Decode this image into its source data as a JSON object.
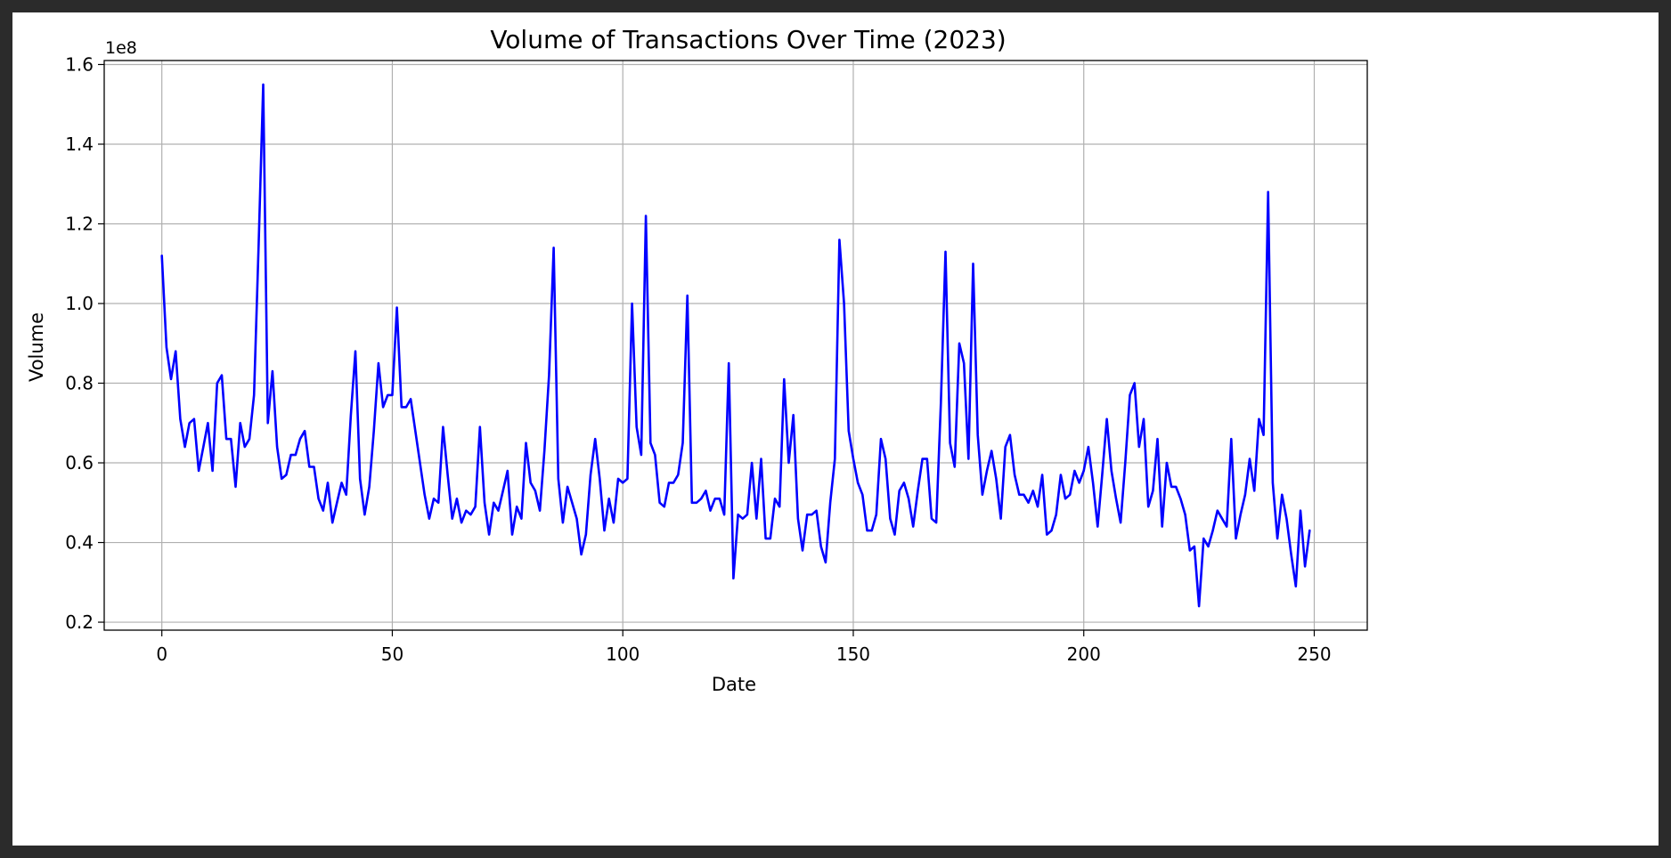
{
  "chart_data": {
    "type": "line",
    "title": "Volume of Transactions Over Time (2023)",
    "xlabel": "Date",
    "ylabel": "Volume",
    "offset_text": "1e8",
    "xlim": [
      -12.5,
      261.5
    ],
    "ylim": [
      0.18,
      1.61
    ],
    "y_scale_factor": 100000000,
    "xticks": [
      0,
      50,
      100,
      150,
      200,
      250
    ],
    "xtick_labels": [
      "0",
      "50",
      "100",
      "150",
      "200",
      "250"
    ],
    "yticks": [
      0.2,
      0.4,
      0.6,
      0.8,
      1.0,
      1.2,
      1.4,
      1.6
    ],
    "ytick_labels": [
      "0.2",
      "0.4",
      "0.6",
      "0.8",
      "1.0",
      "1.2",
      "1.4",
      "1.6"
    ],
    "grid": true,
    "legend": "none",
    "series": [
      {
        "color": "#0000ff",
        "x": [
          0,
          1,
          2,
          3,
          4,
          5,
          6,
          7,
          8,
          9,
          10,
          11,
          12,
          13,
          14,
          15,
          16,
          17,
          18,
          19,
          20,
          21,
          22,
          23,
          24,
          25,
          26,
          27,
          28,
          29,
          30,
          31,
          32,
          33,
          34,
          35,
          36,
          37,
          38,
          39,
          40,
          41,
          42,
          43,
          44,
          45,
          46,
          47,
          48,
          49,
          50,
          51,
          52,
          53,
          54,
          55,
          56,
          57,
          58,
          59,
          60,
          61,
          62,
          63,
          64,
          65,
          66,
          67,
          68,
          69,
          70,
          71,
          72,
          73,
          74,
          75,
          76,
          77,
          78,
          79,
          80,
          81,
          82,
          83,
          84,
          85,
          86,
          87,
          88,
          89,
          90,
          91,
          92,
          93,
          94,
          95,
          96,
          97,
          98,
          99,
          100,
          101,
          102,
          103,
          104,
          105,
          106,
          107,
          108,
          109,
          110,
          111,
          112,
          113,
          114,
          115,
          116,
          117,
          118,
          119,
          120,
          121,
          122,
          123,
          124,
          125,
          126,
          127,
          128,
          129,
          130,
          131,
          132,
          133,
          134,
          135,
          136,
          137,
          138,
          139,
          140,
          141,
          142,
          143,
          144,
          145,
          146,
          147,
          148,
          149,
          150,
          151,
          152,
          153,
          154,
          155,
          156,
          157,
          158,
          159,
          160,
          161,
          162,
          163,
          164,
          165,
          166,
          167,
          168,
          169,
          170,
          171,
          172,
          173,
          174,
          175,
          176,
          177,
          178,
          179,
          180,
          181,
          182,
          183,
          184,
          185,
          186,
          187,
          188,
          189,
          190,
          191,
          192,
          193,
          194,
          195,
          196,
          197,
          198,
          199,
          200,
          201,
          202,
          203,
          204,
          205,
          206,
          207,
          208,
          209,
          210,
          211,
          212,
          213,
          214,
          215,
          216,
          217,
          218,
          219,
          220,
          221,
          222,
          223,
          224,
          225,
          226,
          227,
          228,
          229,
          230,
          231,
          232,
          233,
          234,
          235,
          236,
          237,
          238,
          239,
          240,
          241,
          242,
          243,
          244,
          245,
          246,
          247,
          248,
          249
        ],
        "values": [
          1.12,
          0.89,
          0.81,
          0.88,
          0.71,
          0.64,
          0.7,
          0.71,
          0.58,
          0.64,
          0.7,
          0.58,
          0.8,
          0.82,
          0.66,
          0.66,
          0.54,
          0.7,
          0.64,
          0.66,
          0.77,
          1.15,
          1.55,
          0.7,
          0.83,
          0.64,
          0.56,
          0.57,
          0.62,
          0.62,
          0.66,
          0.68,
          0.59,
          0.59,
          0.51,
          0.48,
          0.55,
          0.45,
          0.5,
          0.55,
          0.52,
          0.72,
          0.88,
          0.56,
          0.47,
          0.54,
          0.68,
          0.85,
          0.74,
          0.77,
          0.77,
          0.99,
          0.74,
          0.74,
          0.76,
          0.68,
          0.6,
          0.52,
          0.46,
          0.51,
          0.5,
          0.69,
          0.57,
          0.46,
          0.51,
          0.45,
          0.48,
          0.47,
          0.49,
          0.69,
          0.5,
          0.42,
          0.5,
          0.48,
          0.53,
          0.58,
          0.42,
          0.49,
          0.46,
          0.65,
          0.55,
          0.53,
          0.48,
          0.63,
          0.82,
          1.14,
          0.56,
          0.45,
          0.54,
          0.5,
          0.46,
          0.37,
          0.42,
          0.57,
          0.66,
          0.56,
          0.43,
          0.51,
          0.45,
          0.56,
          0.55,
          0.56,
          1.0,
          0.69,
          0.62,
          1.22,
          0.65,
          0.62,
          0.5,
          0.49,
          0.55,
          0.55,
          0.57,
          0.65,
          1.02,
          0.5,
          0.5,
          0.51,
          0.53,
          0.48,
          0.51,
          0.51,
          0.47,
          0.85,
          0.31,
          0.47,
          0.46,
          0.47,
          0.6,
          0.46,
          0.61,
          0.41,
          0.41,
          0.51,
          0.49,
          0.81,
          0.6,
          0.72,
          0.46,
          0.38,
          0.47,
          0.47,
          0.48,
          0.39,
          0.35,
          0.5,
          0.61,
          1.16,
          1.0,
          0.68,
          0.61,
          0.55,
          0.52,
          0.43,
          0.43,
          0.47,
          0.66,
          0.61,
          0.46,
          0.42,
          0.53,
          0.55,
          0.51,
          0.44,
          0.53,
          0.61,
          0.61,
          0.46,
          0.45,
          0.75,
          1.13,
          0.65,
          0.59,
          0.9,
          0.85,
          0.61,
          1.1,
          0.67,
          0.52,
          0.58,
          0.63,
          0.56,
          0.46,
          0.64,
          0.67,
          0.57,
          0.52,
          0.52,
          0.5,
          0.53,
          0.49,
          0.57,
          0.42,
          0.43,
          0.47,
          0.57,
          0.51,
          0.52,
          0.58,
          0.55,
          0.58,
          0.64,
          0.55,
          0.44,
          0.57,
          0.71,
          0.58,
          0.51,
          0.45,
          0.6,
          0.77,
          0.8,
          0.64,
          0.71,
          0.49,
          0.53,
          0.66,
          0.44,
          0.6,
          0.54,
          0.54,
          0.51,
          0.47,
          0.38,
          0.39,
          0.24,
          0.41,
          0.39,
          0.43,
          0.48,
          0.46,
          0.44,
          0.66,
          0.41,
          0.47,
          0.52,
          0.61,
          0.53,
          0.71,
          0.67,
          1.28,
          0.55,
          0.41,
          0.52,
          0.46,
          0.37,
          0.29,
          0.48,
          0.34,
          0.43
        ]
      }
    ]
  }
}
